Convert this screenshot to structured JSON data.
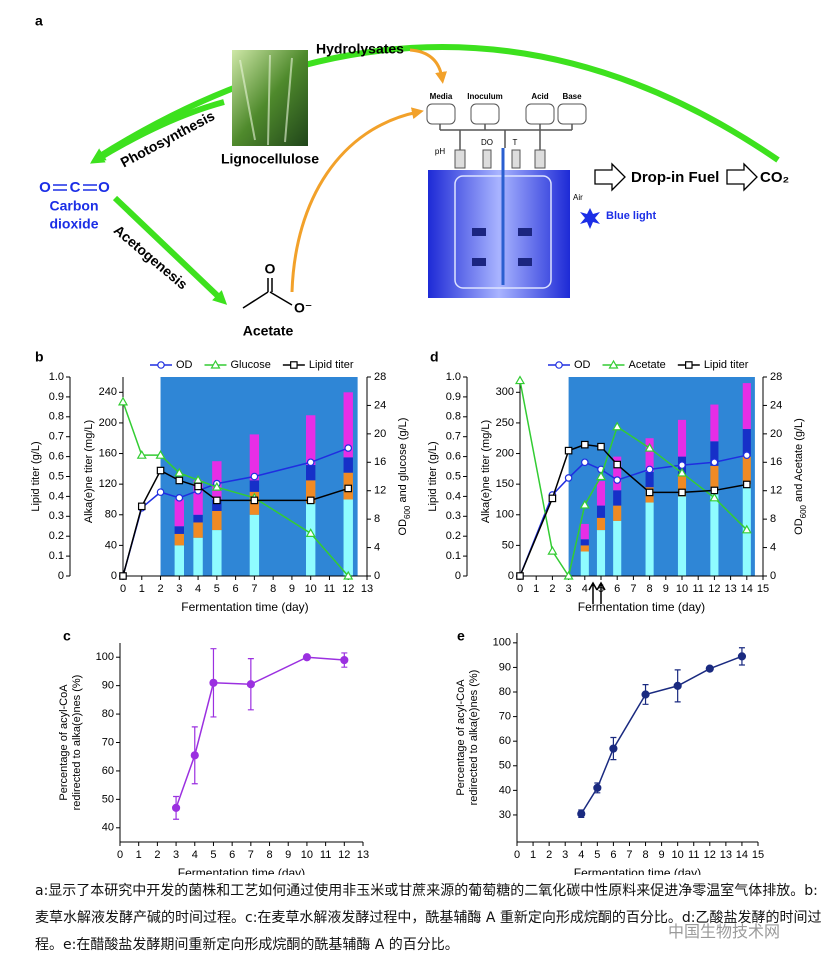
{
  "figure": {
    "label": "a",
    "hydrolysates": "Hydrolysates",
    "photosynthesis": "Photosynthesis",
    "lignocellulose": "Lignocellulose",
    "co2_atoms": [
      "O",
      "C",
      "O"
    ],
    "co2_name": [
      "Carbon",
      "dioxide"
    ],
    "acetogenesis": "Acetogenesis",
    "acetate_oxygens": [
      "O",
      "O⁻"
    ],
    "acetate": "Acetate",
    "vessels": [
      "Media",
      "Inoculum",
      "Acid",
      "Base"
    ],
    "probes": [
      "pH",
      "DO",
      "T"
    ],
    "air": "Air",
    "blue_light": "Blue light",
    "fuel": "Drop-in Fuel",
    "co2": "CO₂"
  },
  "chart_data": [
    {
      "type": "bar_line",
      "panel": "b",
      "legend": "top",
      "x_label": "Fermentation time (day)",
      "xlim": [
        0,
        13
      ],
      "xticks": [
        0,
        1,
        2,
        3,
        4,
        5,
        6,
        7,
        8,
        9,
        10,
        11,
        12,
        13
      ],
      "ylim": [
        0,
        1
      ],
      "yticks": [
        0,
        0.1,
        0.2,
        0.3,
        0.4,
        0.5,
        0.6,
        0.7,
        0.8,
        0.9,
        {
          "value": 1,
          "label": "1.0"
        }
      ],
      "y_label": "Lipid titer (g/L)",
      "ylim_alkane": [
        0,
        260
      ],
      "yticks_alkane": [
        0,
        40,
        80,
        120,
        160,
        200,
        240
      ],
      "y_label_alkane": "Alka(e)ne titer (mg/L)",
      "y2lim": [
        0,
        28
      ],
      "y2ticks": [
        0,
        4,
        8,
        12,
        16,
        20,
        24,
        28
      ],
      "y2_label": [
        "OD",
        "600",
        " and glucose (g/L)"
      ],
      "shade_xlim": [
        2,
        12.5
      ],
      "shade_color": "#2f86d6",
      "bar_x": [
        3,
        4,
        5,
        7,
        10,
        12
      ],
      "bar_segments": [
        {
          "color": "#8ffcff",
          "values": [
            40,
            50,
            60,
            80,
            95,
            100
          ]
        },
        {
          "color": "#f08a24",
          "values": [
            15,
            20,
            25,
            30,
            30,
            35
          ]
        },
        {
          "color": "#1630c8",
          "values": [
            10,
            10,
            15,
            15,
            20,
            20
          ]
        },
        {
          "color": "#e62ee6",
          "values": [
            35,
            45,
            50,
            60,
            65,
            85
          ]
        }
      ],
      "series": [
        {
          "name": "OD",
          "color": "#1f2ee0",
          "marker": "circle",
          "axis": "y2",
          "x": [
            0,
            1,
            2,
            3,
            4,
            5,
            7,
            10,
            12
          ],
          "values": [
            0,
            9.6,
            11.8,
            11,
            12,
            13,
            14,
            16,
            18
          ]
        },
        {
          "name": "Glucose",
          "color": "#33cc33",
          "marker": "triangle",
          "axis": "y2",
          "x": [
            0,
            1,
            2,
            3,
            4,
            5,
            7,
            10,
            12
          ],
          "values": [
            24.5,
            17,
            17,
            14.5,
            13.5,
            12.5,
            11,
            6,
            0
          ]
        },
        {
          "name": "Lipid titer",
          "color": "#000000",
          "marker": "square",
          "axis": "y",
          "x": [
            0,
            1,
            2,
            3,
            4,
            5,
            7,
            10,
            12
          ],
          "values": [
            0,
            0.35,
            0.53,
            0.48,
            0.45,
            0.38,
            0.38,
            0.38,
            0.44
          ]
        }
      ]
    },
    {
      "type": "bar_line",
      "panel": "d",
      "legend": "top",
      "x_label": "Fermentation time (day)",
      "xlim": [
        0,
        15
      ],
      "xticks": [
        0,
        1,
        2,
        3,
        4,
        5,
        6,
        7,
        8,
        9,
        10,
        11,
        12,
        13,
        14,
        15
      ],
      "ylim": [
        0,
        1
      ],
      "yticks": [
        0,
        0.1,
        0.2,
        0.3,
        0.4,
        0.5,
        0.6,
        0.7,
        0.8,
        0.9,
        {
          "value": 1,
          "label": "1.0"
        }
      ],
      "y_label": "Lipid titer (g/L)",
      "ylim_alkane": [
        0,
        325
      ],
      "yticks_alkane": [
        0,
        50,
        100,
        150,
        200,
        250,
        300
      ],
      "y_label_alkane": "Alka(e)ne titer (mg/L)",
      "y2lim": [
        0,
        28
      ],
      "y2ticks": [
        0,
        4,
        8,
        12,
        16,
        20,
        24,
        28
      ],
      "y2_label": [
        "OD",
        "600",
        " and Acetate (g/L)"
      ],
      "shade_xlim": [
        3,
        14.5
      ],
      "shade_color": "#2f86d6",
      "bar_x": [
        4,
        5,
        6,
        8,
        10,
        12,
        14
      ],
      "bar_segments": [
        {
          "color": "#8ffcff",
          "values": [
            40,
            75,
            90,
            120,
            130,
            140,
            150
          ]
        },
        {
          "color": "#f08a24",
          "values": [
            10,
            20,
            25,
            25,
            35,
            40,
            45
          ]
        },
        {
          "color": "#1630c8",
          "values": [
            10,
            20,
            25,
            25,
            30,
            40,
            45
          ]
        },
        {
          "color": "#e62ee6",
          "values": [
            25,
            40,
            55,
            55,
            60,
            60,
            75
          ]
        }
      ],
      "series": [
        {
          "name": "OD",
          "color": "#1f2ee0",
          "marker": "circle",
          "axis": "y2",
          "x": [
            0,
            2,
            3,
            4,
            5,
            6,
            8,
            10,
            12,
            14
          ],
          "values": [
            0,
            11.4,
            13.8,
            16,
            15,
            13.5,
            15,
            15.6,
            16,
            17
          ]
        },
        {
          "name": "Acetate",
          "color": "#33cc33",
          "marker": "triangle",
          "axis": "y2",
          "x": [
            0,
            2,
            3,
            4,
            5,
            6,
            8,
            10,
            12,
            14
          ],
          "values": [
            27.5,
            3.5,
            0,
            10,
            14,
            21,
            18,
            14.5,
            11,
            6.5
          ]
        },
        {
          "name": "Lipid titer",
          "color": "#000000",
          "marker": "square",
          "axis": "y",
          "x": [
            0,
            2,
            3,
            4,
            5,
            6,
            8,
            10,
            12,
            14
          ],
          "values": [
            0,
            0.39,
            0.63,
            0.66,
            0.65,
            0.56,
            0.42,
            0.42,
            0.43,
            0.46
          ]
        }
      ]
    },
    {
      "type": "line",
      "panel": "c",
      "x_label": "Fermentation time (day)",
      "y_label": [
        "Percentage of acyl-CoA",
        "redirected to alka(e)nes (%)"
      ],
      "xlim": [
        0,
        13
      ],
      "xticks": [
        0,
        1,
        2,
        3,
        4,
        5,
        6,
        7,
        8,
        9,
        10,
        11,
        12,
        13
      ],
      "ylim": [
        35,
        105
      ],
      "yticks": [
        40,
        50,
        60,
        70,
        80,
        90,
        100
      ],
      "series": [
        {
          "color": "#9b30e0",
          "x": [
            3,
            4,
            5,
            7,
            10,
            12
          ],
          "values": [
            47,
            65.5,
            91,
            90.5,
            100,
            99
          ],
          "errors": [
            4,
            10,
            12,
            9,
            0.5,
            2.5
          ]
        }
      ]
    },
    {
      "type": "line",
      "panel": "e",
      "x_label": "Fermentation time (day)",
      "y_label": [
        "Percentage of acyl-CoA",
        "redirected to alka(e)nes (%)"
      ],
      "xlim": [
        0,
        15
      ],
      "xticks": [
        0,
        1,
        2,
        3,
        4,
        5,
        6,
        7,
        8,
        9,
        10,
        11,
        12,
        13,
        14,
        15
      ],
      "ylim": [
        19,
        104
      ],
      "yticks": [
        30,
        40,
        50,
        60,
        70,
        80,
        90,
        100
      ],
      "series": [
        {
          "color": "#1a2a80",
          "x": [
            4,
            5,
            6,
            8,
            10,
            12,
            14
          ],
          "values": [
            30.5,
            41,
            57,
            79,
            82.5,
            89.5,
            94.5
          ],
          "errors": [
            1.5,
            2,
            4.5,
            4,
            6.5,
            0.8,
            3.5
          ]
        }
      ]
    }
  ],
  "caption": "a:显示了本研究中开发的菌株和工艺如何通过使用非玉米或甘蔗来源的葡萄糖的二氧化碳中性原料来促进净零温室气体排放。b:麦草水解液发酵产碱的时间过程。c:在麦草水解液发酵过程中，酰基辅酶 A 重新定向形成烷酮的百分比。d:乙酸盐发酵的时间过程。e:在醋酸盐发酵期间重新定向形成烷酮的酰基辅酶 A 的百分比。",
  "watermark": "中国生物技术网"
}
